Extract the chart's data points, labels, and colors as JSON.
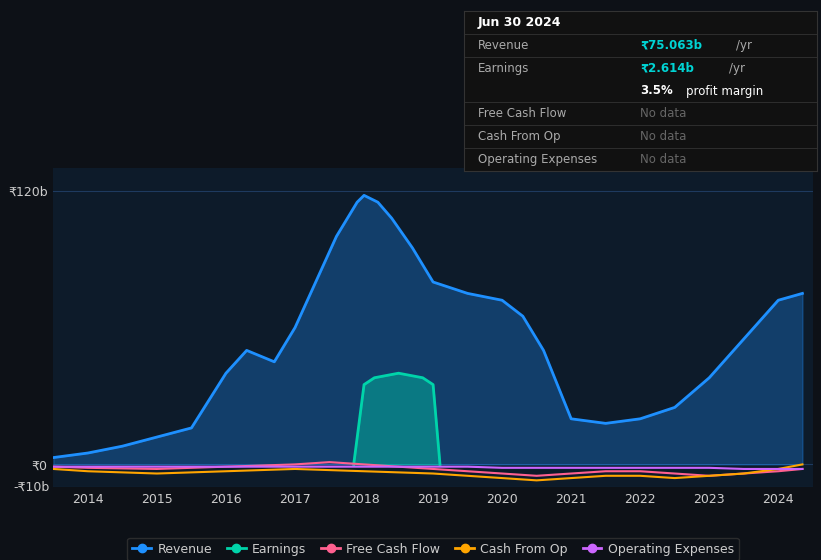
{
  "bg_color": "#0d1117",
  "chart_bg": "#0d1b2a",
  "ylim": [
    -10,
    130
  ],
  "xlabel_years": [
    2014,
    2015,
    2016,
    2017,
    2018,
    2019,
    2020,
    2021,
    2022,
    2023,
    2024
  ],
  "legend": [
    {
      "label": "Revenue",
      "color": "#1e90ff"
    },
    {
      "label": "Earnings",
      "color": "#00d4aa"
    },
    {
      "label": "Free Cash Flow",
      "color": "#ff6090"
    },
    {
      "label": "Cash From Op",
      "color": "#ffa500"
    },
    {
      "label": "Operating Expenses",
      "color": "#cc66ff"
    }
  ],
  "revenue_x": [
    2013.5,
    2014.0,
    2014.5,
    2015.0,
    2015.5,
    2016.0,
    2016.3,
    2016.7,
    2017.0,
    2017.3,
    2017.6,
    2017.9,
    2018.0,
    2018.2,
    2018.4,
    2018.7,
    2019.0,
    2019.5,
    2020.0,
    2020.3,
    2020.6,
    2021.0,
    2021.5,
    2022.0,
    2022.5,
    2023.0,
    2023.5,
    2024.0,
    2024.35
  ],
  "revenue_y": [
    3,
    5,
    8,
    12,
    16,
    40,
    50,
    45,
    60,
    80,
    100,
    115,
    118,
    115,
    108,
    95,
    80,
    75,
    72,
    65,
    50,
    20,
    18,
    20,
    25,
    38,
    55,
    72,
    75
  ],
  "earnings_x": [
    2017.85,
    2018.0,
    2018.15,
    2018.5,
    2018.85,
    2019.0,
    2019.1
  ],
  "earnings_y": [
    0,
    35,
    38,
    40,
    38,
    35,
    0
  ],
  "cashflow_x": [
    2013.5,
    2014.0,
    2015.0,
    2016.0,
    2017.0,
    2017.5,
    2018.0,
    2018.5,
    2019.0,
    2019.5,
    2020.0,
    2020.5,
    2021.0,
    2021.5,
    2022.0,
    2022.5,
    2023.0,
    2023.5,
    2024.0,
    2024.35
  ],
  "cashflow_y": [
    -1,
    -1.5,
    -2,
    -1,
    0,
    1,
    0,
    -1,
    -2,
    -3,
    -4,
    -5,
    -4,
    -3,
    -3,
    -4,
    -5,
    -4,
    -3,
    -2
  ],
  "cashfromop_x": [
    2013.5,
    2014.0,
    2015.0,
    2016.0,
    2017.0,
    2018.0,
    2019.0,
    2019.5,
    2020.0,
    2020.5,
    2021.0,
    2021.5,
    2022.0,
    2022.5,
    2023.0,
    2023.5,
    2024.0,
    2024.35
  ],
  "cashfromop_y": [
    -2,
    -3,
    -4,
    -3,
    -2,
    -3,
    -4,
    -5,
    -6,
    -7,
    -6,
    -5,
    -5,
    -6,
    -5,
    -4,
    -2,
    0
  ],
  "opex_x": [
    2013.5,
    2014.0,
    2015.0,
    2016.0,
    2017.0,
    2018.0,
    2019.0,
    2019.5,
    2020.0,
    2021.0,
    2021.5,
    2022.0,
    2022.5,
    2023.0,
    2023.5,
    2024.0,
    2024.35
  ],
  "opex_y": [
    -1,
    -1,
    -1,
    -1,
    -1,
    -1,
    -1,
    -1,
    -1.5,
    -1.5,
    -1.5,
    -1.5,
    -1.5,
    -1.5,
    -2,
    -2,
    -2
  ],
  "revenue_fill_color": "#1e90ff",
  "earnings_fill_color": "#00d4aa",
  "cashflow_color": "#ff6090",
  "cashfromop_color": "#ffa500",
  "opex_color": "#cc66ff",
  "table_title": "Jun 30 2024",
  "table_rows": [
    {
      "label": "Revenue",
      "value": "₹75.063b",
      "suffix": " /yr",
      "value_color": "#00d4d4",
      "suffix_color": "#aaaaaa",
      "note": null
    },
    {
      "label": "Earnings",
      "value": "₹2.614b",
      "suffix": " /yr",
      "value_color": "#00d4d4",
      "suffix_color": "#aaaaaa",
      "note": "3.5% profit margin"
    },
    {
      "label": "Free Cash Flow",
      "value": "No data",
      "suffix": null,
      "value_color": "#666666",
      "suffix_color": null,
      "note": null
    },
    {
      "label": "Cash From Op",
      "value": "No data",
      "suffix": null,
      "value_color": "#666666",
      "suffix_color": null,
      "note": null
    },
    {
      "label": "Operating Expenses",
      "value": "No data",
      "suffix": null,
      "value_color": "#666666",
      "suffix_color": null,
      "note": null
    }
  ]
}
